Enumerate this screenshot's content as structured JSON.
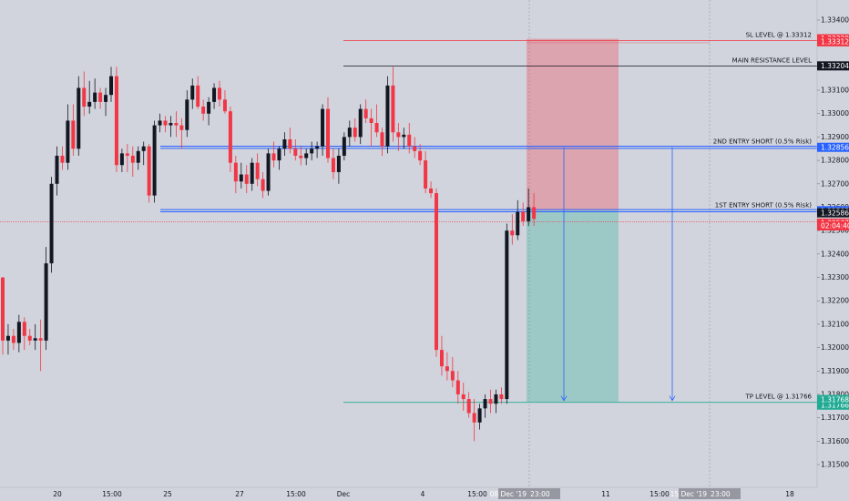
{
  "chart_data": {
    "type": "candlestick",
    "ylim": [
      1.3143,
      1.3343
    ],
    "xlabels": [
      "20",
      "15:00",
      "25",
      "27",
      "15:00",
      "Dec",
      "4",
      "15:00",
      "9",
      "11",
      "15:00",
      "18"
    ],
    "ytick_values": [
      1.315,
      1.316,
      1.317,
      1.318,
      1.319,
      1.32,
      1.321,
      1.322,
      1.323,
      1.324,
      1.325,
      1.326,
      1.327,
      1.328,
      1.329,
      1.33,
      1.331,
      1.332,
      1.333,
      1.334
    ],
    "ytick_labels": [
      "1.31500",
      "1.31600",
      "1.31700",
      "1.31800",
      "1.31900",
      "1.32000",
      "1.32100",
      "1.32200",
      "1.32300",
      "1.32400",
      "1.32500",
      "1.32600",
      "1.32700",
      "1.32800",
      "1.32900",
      "1.33000",
      "1.33100",
      "1.33200",
      "1.33300",
      "1.33400"
    ],
    "current_price": 1.32537,
    "current_price_label": "1.32537",
    "countdown": "02:04:40",
    "crosshair_date_label_1": "08 Dec '19",
    "crosshair_time_label_1": "23:00",
    "crosshair_date_label_2": "15 Dec '19",
    "crosshair_time_label_2": "23:00",
    "levels": [
      {
        "name": "sl-level",
        "text": "SL LEVEL @ 1.33312",
        "price": 1.33312,
        "price_label": "1.33312",
        "color": "#f23645"
      },
      {
        "name": "main-resistance",
        "text": "MAIN RESISTANCE LEVEL",
        "price": 1.33204,
        "price_label": "1.33204",
        "color": "#131722"
      },
      {
        "name": "second-entry",
        "text": "2ND ENTRY SHORT (0.5% Risk)",
        "price": 1.32856,
        "price_label": "1.32856",
        "color": "#2962ff"
      },
      {
        "name": "first-entry",
        "text": "1ST ENTRY SHORT (0.5% Risk)",
        "price": 1.32585,
        "price_label": "1.32585",
        "color": "#2962ff"
      },
      {
        "name": "tp-level",
        "text": "TP LEVEL @ 1.31766",
        "price": 1.31766,
        "price_label": "1.31766",
        "color": "#22ab94"
      }
    ],
    "position_box": {
      "target_label": "1.33320",
      "target_price": 1.3332,
      "entry_label": "1.32586",
      "entry_price": 1.32586,
      "stop_label": "1.31768",
      "stop_price": 1.31768,
      "loss_color": "#f23645",
      "profit_color": "#22ab94"
    },
    "candles": [
      [
        1.323,
        1.323,
        1.3197,
        1.3203
      ],
      [
        1.3203,
        1.321,
        1.3197,
        1.3205
      ],
      [
        1.3205,
        1.3208,
        1.3199,
        1.3202
      ],
      [
        1.3202,
        1.3214,
        1.3198,
        1.3211
      ],
      [
        1.3211,
        1.3213,
        1.3199,
        1.3205
      ],
      [
        1.3205,
        1.3208,
        1.3201,
        1.3203
      ],
      [
        1.3203,
        1.321,
        1.3199,
        1.3204
      ],
      [
        1.3204,
        1.3212,
        1.319,
        1.3203
      ],
      [
        1.3203,
        1.3243,
        1.3199,
        1.3236
      ],
      [
        1.3236,
        1.3273,
        1.3232,
        1.327
      ],
      [
        1.327,
        1.3286,
        1.3265,
        1.3282
      ],
      [
        1.3282,
        1.3286,
        1.3276,
        1.3279
      ],
      [
        1.3279,
        1.3304,
        1.3276,
        1.3297
      ],
      [
        1.3297,
        1.3304,
        1.3282,
        1.3285
      ],
      [
        1.3285,
        1.3316,
        1.3282,
        1.3311
      ],
      [
        1.3311,
        1.3318,
        1.3299,
        1.3303
      ],
      [
        1.3303,
        1.3314,
        1.33,
        1.3305
      ],
      [
        1.3305,
        1.3315,
        1.3302,
        1.3309
      ],
      [
        1.3309,
        1.3311,
        1.3302,
        1.3305
      ],
      [
        1.3305,
        1.3311,
        1.3299,
        1.3308
      ],
      [
        1.3308,
        1.332,
        1.3305,
        1.3316
      ],
      [
        1.3316,
        1.332,
        1.3275,
        1.3278
      ],
      [
        1.3278,
        1.3285,
        1.3275,
        1.3283
      ],
      [
        1.3283,
        1.3287,
        1.3275,
        1.3282
      ],
      [
        1.3282,
        1.3286,
        1.3273,
        1.3279
      ],
      [
        1.3279,
        1.3286,
        1.3276,
        1.3284
      ],
      [
        1.3284,
        1.3288,
        1.3278,
        1.3286
      ],
      [
        1.3286,
        1.3287,
        1.3262,
        1.3265
      ],
      [
        1.3265,
        1.3297,
        1.3262,
        1.3295
      ],
      [
        1.3295,
        1.33,
        1.3292,
        1.3297
      ],
      [
        1.3297,
        1.3299,
        1.3292,
        1.3295
      ],
      [
        1.3295,
        1.3299,
        1.329,
        1.3296
      ],
      [
        1.3296,
        1.3301,
        1.329,
        1.3295
      ],
      [
        1.3295,
        1.3298,
        1.3285,
        1.3293
      ],
      [
        1.3293,
        1.331,
        1.329,
        1.3306
      ],
      [
        1.3306,
        1.3315,
        1.3302,
        1.3312
      ],
      [
        1.3312,
        1.3316,
        1.3302,
        1.3303
      ],
      [
        1.3303,
        1.3306,
        1.3297,
        1.33
      ],
      [
        1.33,
        1.3307,
        1.3295,
        1.3305
      ],
      [
        1.3305,
        1.3313,
        1.3302,
        1.3311
      ],
      [
        1.3311,
        1.3314,
        1.3303,
        1.3306
      ],
      [
        1.3306,
        1.331,
        1.33,
        1.3301
      ],
      [
        1.3301,
        1.3303,
        1.3275,
        1.3279
      ],
      [
        1.3279,
        1.3282,
        1.3266,
        1.3271
      ],
      [
        1.3271,
        1.3279,
        1.3268,
        1.3274
      ],
      [
        1.3274,
        1.3278,
        1.3266,
        1.327
      ],
      [
        1.327,
        1.3281,
        1.3267,
        1.3279
      ],
      [
        1.3279,
        1.3283,
        1.3269,
        1.3272
      ],
      [
        1.3272,
        1.3275,
        1.3264,
        1.3267
      ],
      [
        1.3267,
        1.3285,
        1.3265,
        1.3283
      ],
      [
        1.3283,
        1.3288,
        1.3277,
        1.328
      ],
      [
        1.328,
        1.3286,
        1.3276,
        1.3285
      ],
      [
        1.3285,
        1.3292,
        1.3282,
        1.3289
      ],
      [
        1.3289,
        1.3294,
        1.3283,
        1.3285
      ],
      [
        1.3285,
        1.3289,
        1.328,
        1.3282
      ],
      [
        1.3282,
        1.3286,
        1.3278,
        1.3281
      ],
      [
        1.3281,
        1.3285,
        1.3278,
        1.3283
      ],
      [
        1.3283,
        1.3288,
        1.328,
        1.3285
      ],
      [
        1.3285,
        1.3288,
        1.3281,
        1.3286
      ],
      [
        1.3286,
        1.3304,
        1.3282,
        1.3302
      ],
      [
        1.3302,
        1.3307,
        1.3279,
        1.3281
      ],
      [
        1.3281,
        1.3285,
        1.3272,
        1.3275
      ],
      [
        1.3275,
        1.3285,
        1.327,
        1.3282
      ],
      [
        1.3282,
        1.3292,
        1.328,
        1.329
      ],
      [
        1.329,
        1.3297,
        1.3286,
        1.3294
      ],
      [
        1.3294,
        1.3298,
        1.3288,
        1.329
      ],
      [
        1.329,
        1.3304,
        1.3287,
        1.3302
      ],
      [
        1.3302,
        1.3306,
        1.3296,
        1.3298
      ],
      [
        1.3298,
        1.3302,
        1.3286,
        1.3296
      ],
      [
        1.3296,
        1.3304,
        1.329,
        1.3292
      ],
      [
        1.3292,
        1.3294,
        1.3282,
        1.3286
      ],
      [
        1.3286,
        1.3316,
        1.3283,
        1.3312
      ],
      [
        1.3312,
        1.332,
        1.3288,
        1.3292
      ],
      [
        1.3292,
        1.3296,
        1.3284,
        1.329
      ],
      [
        1.329,
        1.3294,
        1.3285,
        1.3291
      ],
      [
        1.3291,
        1.3296,
        1.3283,
        1.3286
      ],
      [
        1.3286,
        1.329,
        1.3281,
        1.3284
      ],
      [
        1.3284,
        1.3287,
        1.3278,
        1.328
      ],
      [
        1.328,
        1.3284,
        1.3266,
        1.3268
      ],
      [
        1.3268,
        1.3271,
        1.3264,
        1.3266
      ],
      [
        1.3266,
        1.3268,
        1.3196,
        1.3199
      ],
      [
        1.3199,
        1.3205,
        1.3188,
        1.3192
      ],
      [
        1.3192,
        1.3198,
        1.3186,
        1.319
      ],
      [
        1.319,
        1.3196,
        1.3183,
        1.3186
      ],
      [
        1.3186,
        1.319,
        1.3176,
        1.318
      ],
      [
        1.318,
        1.3185,
        1.3173,
        1.3178
      ],
      [
        1.3178,
        1.3181,
        1.317,
        1.3172
      ],
      [
        1.3172,
        1.3178,
        1.316,
        1.3168
      ],
      [
        1.3168,
        1.3176,
        1.3165,
        1.3174
      ],
      [
        1.3174,
        1.318,
        1.317,
        1.3178
      ],
      [
        1.3178,
        1.3182,
        1.3172,
        1.3176
      ],
      [
        1.3176,
        1.3182,
        1.3172,
        1.318
      ],
      [
        1.318,
        1.3183,
        1.3176,
        1.3178
      ],
      [
        1.3178,
        1.3253,
        1.3176,
        1.325
      ],
      [
        1.325,
        1.3257,
        1.3244,
        1.3248
      ],
      [
        1.3248,
        1.3263,
        1.3246,
        1.3258
      ],
      [
        1.3258,
        1.3262,
        1.3252,
        1.3254
      ],
      [
        1.3254,
        1.3268,
        1.3252,
        1.326
      ],
      [
        1.326,
        1.3266,
        1.3252,
        1.3255
      ]
    ]
  }
}
